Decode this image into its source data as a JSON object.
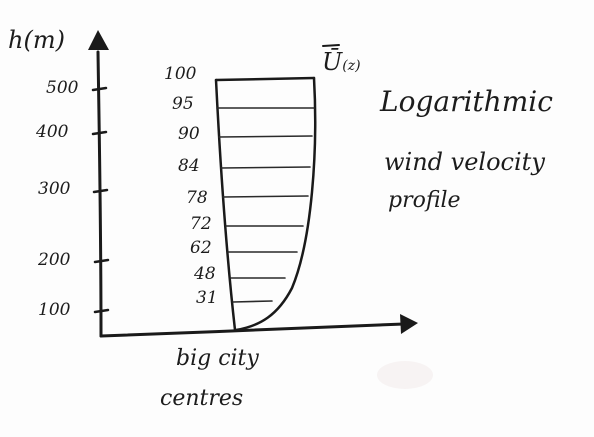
{
  "y_axis": {
    "label": "h(m)",
    "ticks": [
      "500",
      "400",
      "300",
      "200",
      "100"
    ]
  },
  "velocity_label": {
    "main": "Ū",
    "sub": "(z)"
  },
  "velocities": [
    "100",
    "95",
    "90",
    "84",
    "78",
    "72",
    "62",
    "48",
    "31"
  ],
  "title": {
    "line1": "Logarithmic",
    "line2": "wind velocity",
    "line3": "profile"
  },
  "terrain": {
    "line1": "big city",
    "line2": "centres"
  }
}
